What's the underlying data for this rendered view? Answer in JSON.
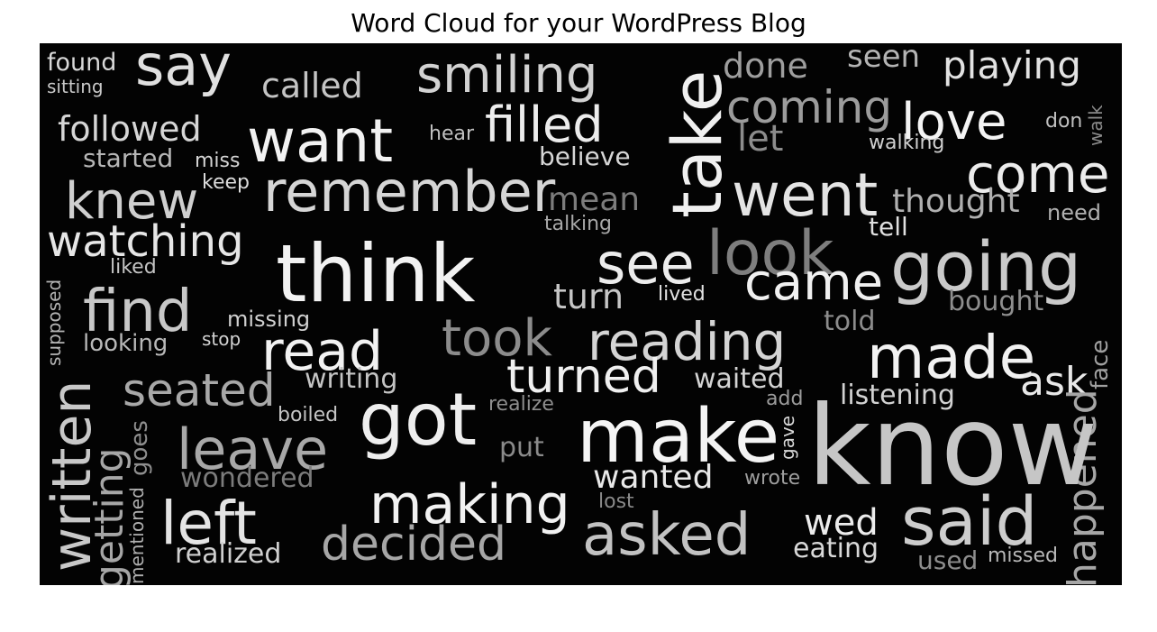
{
  "title": "Word Cloud for your WordPress Blog",
  "colors": {
    "background": "#030303",
    "word_light": "#f2f2f2",
    "word_mid": "#c8c8c8",
    "word_dark": "#9a9a9a"
  },
  "words": {
    "found": "found",
    "sitting": "sitting",
    "say": "say",
    "called": "called",
    "smiling": "smiling",
    "take": "take",
    "done": "done",
    "seen": "seen",
    "playing": "playing",
    "followed": "followed",
    "want": "want",
    "hear": "hear",
    "filled": "filled",
    "coming": "coming",
    "love": "love",
    "walk": "walk",
    "don": "don",
    "let": "let",
    "walking": "walking",
    "started": "started",
    "miss": "miss",
    "believe": "believe",
    "come": "come",
    "keep": "keep",
    "knew": "knew",
    "remember": "remember",
    "went": "went",
    "thought": "thought",
    "need": "need",
    "mean": "mean",
    "talking": "talking",
    "tell": "tell",
    "watching": "watching",
    "think": "think",
    "look": "look",
    "going": "going",
    "liked": "liked",
    "see": "see",
    "came": "came",
    "turn": "turn",
    "lived": "lived",
    "bought": "bought",
    "find": "find",
    "supposed": "supposed",
    "missing": "missing",
    "told": "told",
    "looking": "looking",
    "stop": "stop",
    "took": "took",
    "reading": "reading",
    "face": "face",
    "read": "read",
    "made": "made",
    "seated": "seated",
    "turned": "turned",
    "ask": "ask",
    "writing": "writing",
    "waited": "waited",
    "listening": "listening",
    "add": "add",
    "realize": "realize",
    "got": "got",
    "written": "written",
    "boiled": "boiled",
    "happened": "happened",
    "make": "make",
    "know": "know",
    "getting": "getting",
    "goes": "goes",
    "leave": "leave",
    "gave": "gave",
    "put": "put",
    "wondered": "wondered",
    "wanted": "wanted",
    "wrote": "wrote",
    "mentioned": "mentioned",
    "making": "making",
    "lost": "lost",
    "said": "said",
    "left": "left",
    "wed": "wed",
    "decided": "decided",
    "asked": "asked",
    "eating": "eating",
    "realized": "realized",
    "used": "used",
    "missed": "missed"
  }
}
